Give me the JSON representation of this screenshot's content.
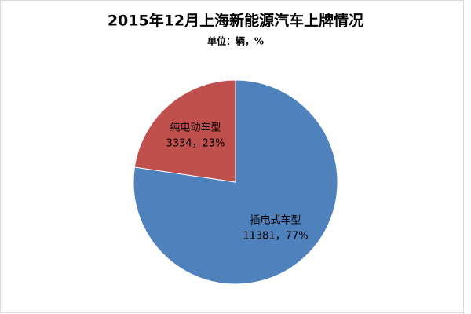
{
  "chart_data": {
    "type": "pie",
    "title": "2015年12月上海新能源汽车上牌情况",
    "subtitle": "单位：辆，%",
    "categories": [
      "插电式车型",
      "纯电动车型"
    ],
    "values": [
      11381,
      3334
    ],
    "value_labels": [
      "11381，77%",
      "3334，23%"
    ],
    "colors": [
      "#4f81bd",
      "#c0504d"
    ]
  }
}
